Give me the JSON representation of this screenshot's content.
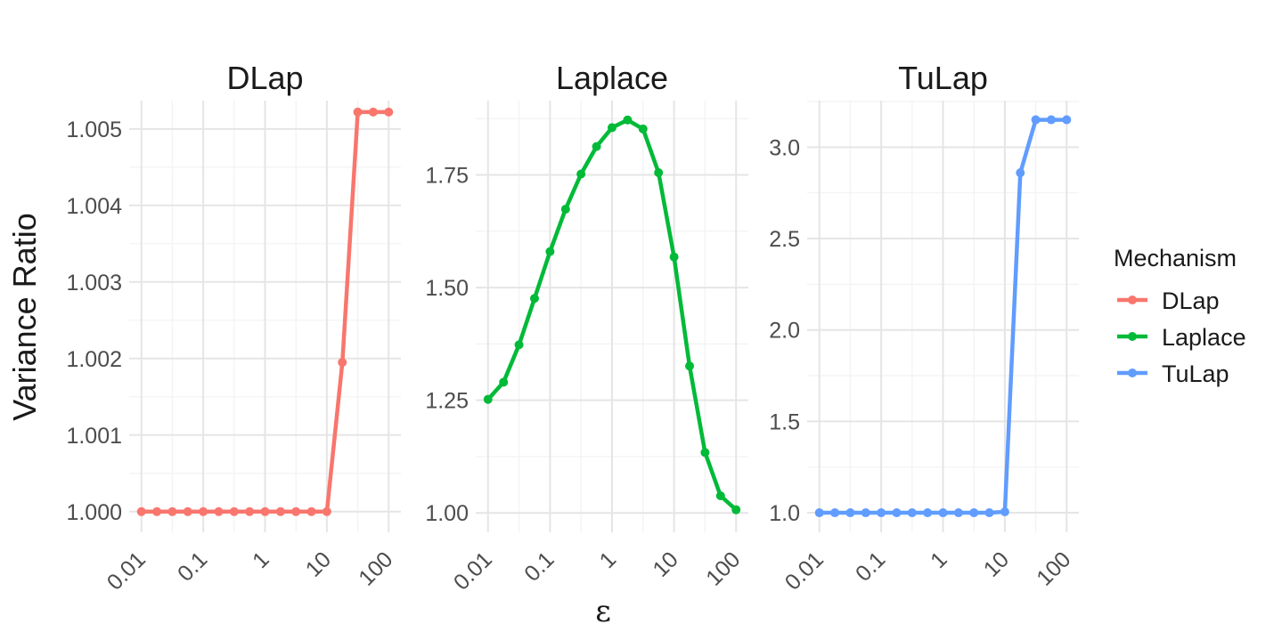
{
  "chart_data": {
    "type": "line",
    "ylabel": "Variance Ratio",
    "xlabel": "ε",
    "x_scale": "log10",
    "x_ticks": [
      0.01,
      0.1,
      1,
      10,
      100
    ],
    "x_tick_labels": [
      "0.01",
      "0.1",
      "1",
      "10",
      "100"
    ],
    "x": [
      0.01,
      0.0178,
      0.0316,
      0.0562,
      0.1,
      0.178,
      0.316,
      0.562,
      1,
      1.78,
      3.16,
      5.62,
      10,
      17.8,
      31.6,
      56.2,
      100
    ],
    "grid": true,
    "legend": {
      "title": "Mechanism",
      "position": "right",
      "entries": [
        {
          "label": "DLap",
          "color": "#F8766D"
        },
        {
          "label": "Laplace",
          "color": "#00BA38"
        },
        {
          "label": "TuLap",
          "color": "#619CFF"
        }
      ]
    },
    "panels": [
      {
        "title": "DLap",
        "color": "#F8766D",
        "ylim": [
          0.99973,
          1.00537
        ],
        "y_ticks": [
          1.0,
          1.001,
          1.002,
          1.003,
          1.004,
          1.005
        ],
        "y_tick_labels": [
          "1.000",
          "1.001",
          "1.002",
          "1.003",
          "1.004",
          "1.005"
        ],
        "values": [
          1.0,
          1.0,
          1.0,
          1.0,
          1.0,
          1.0,
          1.0,
          1.0,
          1.0,
          1.0,
          1.0,
          1.0,
          1.0,
          1.00195,
          1.00522,
          1.00522,
          1.00522
        ]
      },
      {
        "title": "Laplace",
        "color": "#00BA38",
        "ylim": [
          0.957,
          1.915
        ],
        "y_ticks": [
          1.0,
          1.25,
          1.5,
          1.75
        ],
        "y_tick_labels": [
          "1.00",
          "1.25",
          "1.50",
          "1.75"
        ],
        "values": [
          1.252,
          1.29,
          1.373,
          1.476,
          1.58,
          1.674,
          1.752,
          1.813,
          1.855,
          1.872,
          1.852,
          1.755,
          1.568,
          1.326,
          1.134,
          1.038,
          1.007
        ]
      },
      {
        "title": "TuLap",
        "color": "#619CFF",
        "ylim": [
          0.893,
          3.255
        ],
        "y_ticks": [
          1.0,
          1.5,
          2.0,
          2.5,
          3.0
        ],
        "y_tick_labels": [
          "1.0",
          "1.5",
          "2.0",
          "2.5",
          "3.0"
        ],
        "values": [
          1.0,
          1.0,
          1.0,
          1.0,
          1.0,
          1.0,
          1.0,
          1.0,
          1.0,
          1.0,
          1.0,
          1.0,
          1.005,
          2.86,
          3.15,
          3.15,
          3.15
        ]
      }
    ]
  }
}
